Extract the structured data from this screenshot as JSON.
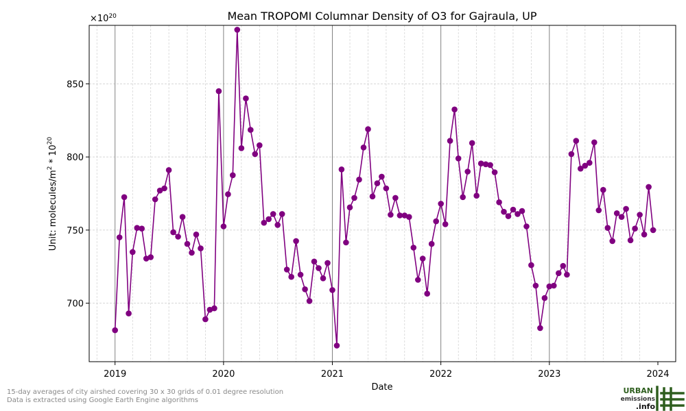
{
  "chart_data": {
    "type": "line",
    "title": "Mean TROPOMI Columnar Density of O3 for Gajraula, UP",
    "xlabel": "Date",
    "ylabel_text": "Unit: molecules/m",
    "ylabel_sup": "2",
    "ylabel_mid": " * 10",
    "ylabel_exp": "20",
    "offset_base": "×10",
    "offset_exp": "20",
    "x_ticks": [
      "2019",
      "2020",
      "2021",
      "2022",
      "2023",
      "2024"
    ],
    "y_ticks": [
      700,
      750,
      800,
      850
    ],
    "xlim": [
      "2018-10-06",
      "2024-03-01"
    ],
    "ylim": [
      660,
      890
    ],
    "grid": true,
    "color": "#800080",
    "series": [
      {
        "x": [
          "2019-01-01",
          "2019-01-16",
          "2019-02-01",
          "2019-02-16",
          "2019-03-01",
          "2019-03-16",
          "2019-04-01",
          "2019-04-16",
          "2019-05-01",
          "2019-05-16",
          "2019-06-01",
          "2019-06-16",
          "2019-07-01",
          "2019-07-16",
          "2019-08-01",
          "2019-08-16",
          "2019-09-01",
          "2019-09-16",
          "2019-10-01",
          "2019-10-16",
          "2019-11-01",
          "2019-11-16",
          "2019-12-01",
          "2019-12-16",
          "2020-01-01",
          "2020-01-16",
          "2020-02-01",
          "2020-02-16",
          "2020-03-01",
          "2020-03-16",
          "2020-04-01",
          "2020-04-16",
          "2020-05-01",
          "2020-05-16",
          "2020-06-01",
          "2020-06-16",
          "2020-07-01",
          "2020-07-16",
          "2020-08-01",
          "2020-08-16",
          "2020-09-01",
          "2020-09-16",
          "2020-10-01",
          "2020-10-16",
          "2020-11-01",
          "2020-11-16",
          "2020-12-01",
          "2020-12-16",
          "2021-01-01",
          "2021-01-16",
          "2021-02-01",
          "2021-02-16",
          "2021-03-01",
          "2021-03-16",
          "2021-04-01",
          "2021-04-16",
          "2021-05-01",
          "2021-05-16",
          "2021-06-01",
          "2021-06-16",
          "2021-07-01",
          "2021-07-16",
          "2021-08-01",
          "2021-08-16",
          "2021-09-01",
          "2021-09-16",
          "2021-10-01",
          "2021-10-16",
          "2021-11-01",
          "2021-11-16",
          "2021-12-01",
          "2021-12-16",
          "2022-01-01",
          "2022-01-16",
          "2022-02-01",
          "2022-02-16",
          "2022-03-01",
          "2022-03-16",
          "2022-04-01",
          "2022-04-16",
          "2022-05-01",
          "2022-05-16",
          "2022-06-01",
          "2022-06-16",
          "2022-07-01",
          "2022-07-16",
          "2022-08-01",
          "2022-08-16",
          "2022-09-01",
          "2022-09-16",
          "2022-10-01",
          "2022-10-16",
          "2022-11-01",
          "2022-11-16",
          "2022-12-01",
          "2022-12-16",
          "2023-01-01",
          "2023-01-16",
          "2023-02-01",
          "2023-02-16",
          "2023-03-01",
          "2023-03-16",
          "2023-04-01",
          "2023-04-16",
          "2023-05-01",
          "2023-05-16",
          "2023-06-01",
          "2023-06-16",
          "2023-07-01",
          "2023-07-16",
          "2023-08-01",
          "2023-08-16",
          "2023-09-01",
          "2023-09-16",
          "2023-10-01",
          "2023-10-16",
          "2023-11-01",
          "2023-11-16",
          "2023-12-01",
          "2023-12-16"
        ],
        "values": [
          681.5,
          745.0,
          772.5,
          693.0,
          735.0,
          751.5,
          751.0,
          730.5,
          731.5,
          771.0,
          777.0,
          778.5,
          791.0,
          748.5,
          745.5,
          759.0,
          740.5,
          734.5,
          747.0,
          737.5,
          689.0,
          695.5,
          696.5,
          845.0,
          752.5,
          774.5,
          787.5,
          887.0,
          806.0,
          840.0,
          818.5,
          802.0,
          808.0,
          755.0,
          757.5,
          761.0,
          753.5,
          761.0,
          723.0,
          718.0,
          742.5,
          719.5,
          709.5,
          701.5,
          728.5,
          724.0,
          717.0,
          727.5,
          709.0,
          671.0,
          791.5,
          741.5,
          765.5,
          772.0,
          784.5,
          806.5,
          819.0,
          773.0,
          782.0,
          786.5,
          778.5,
          760.5,
          772.0,
          760.0,
          760.0,
          759.0,
          738.0,
          716.0,
          730.5,
          706.5,
          740.5,
          756.0,
          768.0,
          754.0,
          811.0,
          832.5,
          799.0,
          772.5,
          790.0,
          809.5,
          773.5,
          795.5,
          795.0,
          794.5,
          789.5,
          769.0,
          762.5,
          759.5,
          764.0,
          761.0,
          763.0,
          752.5,
          726.0,
          712.0,
          683.0,
          703.5,
          711.5,
          712.0,
          720.5,
          725.5,
          719.5,
          802.0,
          811.0,
          792.0,
          794.0,
          796.0,
          810.0,
          763.5,
          777.5,
          751.5,
          742.5,
          761.5,
          759.0,
          764.5,
          743.0,
          751.0,
          760.5,
          747.0,
          779.5,
          750.0
        ]
      }
    ]
  },
  "footnotes": {
    "line1": "15-day averages of city airshed covering 30 x 30 grids of 0.01 degree resolution",
    "line2": "Data is extracted using Google Earth Engine algorithms"
  },
  "logo": {
    "line1": "URBAN",
    "line2": "emissions",
    "line3": ".info",
    "color": "#2e5e1e"
  }
}
